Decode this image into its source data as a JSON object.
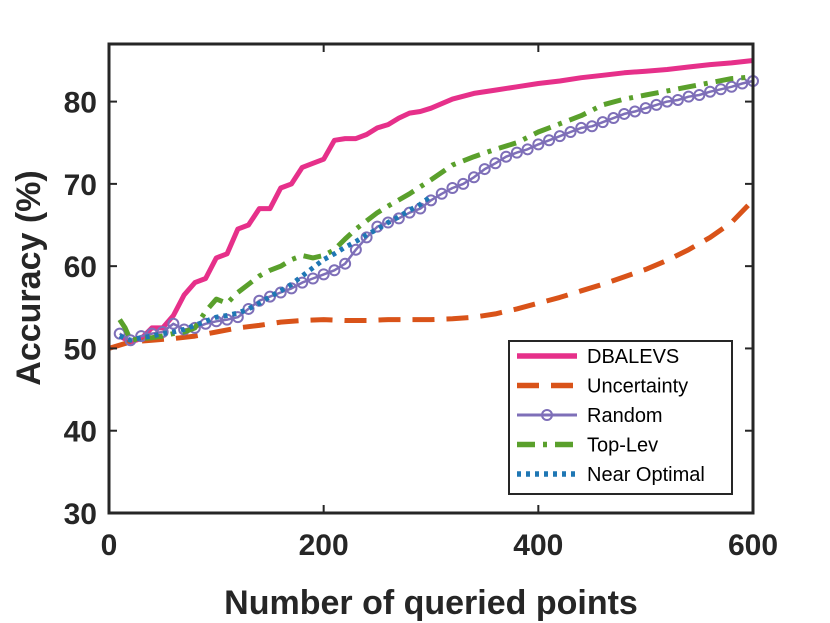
{
  "chart_data": {
    "type": "line",
    "xlabel": "Number of queried points",
    "ylabel": "Accuracy (%)",
    "xlim": [
      0,
      600
    ],
    "ylim": [
      30,
      87
    ],
    "xticks": [
      0,
      200,
      400,
      600
    ],
    "yticks": [
      30,
      40,
      50,
      60,
      70,
      80
    ],
    "grid": false,
    "legend_position": "bottom-right",
    "series": [
      {
        "name": "DBALEVS",
        "color": "#e6308a",
        "style": "solid",
        "x": [
          10,
          20,
          30,
          40,
          50,
          60,
          70,
          80,
          90,
          100,
          110,
          120,
          130,
          140,
          150,
          160,
          170,
          180,
          190,
          200,
          210,
          220,
          230,
          240,
          250,
          260,
          270,
          280,
          290,
          300,
          320,
          340,
          360,
          380,
          400,
          420,
          440,
          460,
          480,
          500,
          520,
          540,
          560,
          580,
          600
        ],
        "y": [
          51.5,
          50.8,
          51.2,
          52.5,
          52.5,
          54.0,
          56.5,
          58.0,
          58.5,
          61.0,
          61.5,
          64.5,
          65.0,
          67.0,
          67.0,
          69.5,
          70.0,
          72.0,
          72.5,
          73.0,
          75.3,
          75.5,
          75.5,
          76.0,
          76.8,
          77.2,
          78.0,
          78.6,
          78.8,
          79.2,
          80.3,
          81.0,
          81.4,
          81.8,
          82.2,
          82.5,
          82.9,
          83.2,
          83.5,
          83.7,
          83.9,
          84.2,
          84.5,
          84.7,
          85.0
        ]
      },
      {
        "name": "Uncertainty",
        "color": "#d95319",
        "style": "dashed",
        "x": [
          0,
          20,
          40,
          60,
          80,
          100,
          120,
          140,
          160,
          180,
          200,
          220,
          240,
          260,
          280,
          300,
          320,
          340,
          360,
          380,
          400,
          420,
          440,
          460,
          480,
          500,
          520,
          540,
          560,
          580,
          600
        ],
        "y": [
          50.0,
          50.8,
          51.0,
          51.2,
          51.5,
          52.0,
          52.5,
          52.8,
          53.2,
          53.4,
          53.5,
          53.4,
          53.4,
          53.5,
          53.5,
          53.5,
          53.6,
          53.8,
          54.2,
          54.8,
          55.5,
          56.2,
          57.0,
          57.8,
          58.7,
          59.6,
          60.7,
          62.0,
          63.5,
          65.3,
          68.0
        ]
      },
      {
        "name": "Random",
        "color": "#7e6fb8",
        "style": "solid-circle",
        "x": [
          10,
          20,
          30,
          40,
          50,
          60,
          70,
          80,
          90,
          100,
          110,
          120,
          130,
          140,
          150,
          160,
          170,
          180,
          190,
          200,
          210,
          220,
          230,
          240,
          250,
          260,
          270,
          280,
          290,
          300,
          310,
          320,
          330,
          340,
          350,
          360,
          370,
          380,
          390,
          400,
          410,
          420,
          430,
          440,
          450,
          460,
          470,
          480,
          490,
          500,
          510,
          520,
          530,
          540,
          550,
          560,
          570,
          580,
          590,
          600
        ],
        "y": [
          51.8,
          51.0,
          51.5,
          51.8,
          52.0,
          53.0,
          52.3,
          52.5,
          53.0,
          53.3,
          53.5,
          53.8,
          54.8,
          55.8,
          56.3,
          56.8,
          57.3,
          58.0,
          58.5,
          59.0,
          59.5,
          60.3,
          62.0,
          63.5,
          64.8,
          65.3,
          65.8,
          66.5,
          67.0,
          68.0,
          68.8,
          69.5,
          70.0,
          70.8,
          71.8,
          72.5,
          73.3,
          73.8,
          74.2,
          74.8,
          75.3,
          75.8,
          76.3,
          76.8,
          77.0,
          77.5,
          78.0,
          78.5,
          78.8,
          79.2,
          79.6,
          80.0,
          80.2,
          80.6,
          80.8,
          81.2,
          81.5,
          81.8,
          82.2,
          82.5
        ]
      },
      {
        "name": "Top-Lev",
        "color": "#5aa02c",
        "style": "dashdot",
        "x": [
          10,
          15,
          20,
          30,
          40,
          50,
          60,
          70,
          80,
          90,
          100,
          110,
          120,
          130,
          140,
          150,
          160,
          170,
          180,
          190,
          200,
          210,
          220,
          230,
          240,
          250,
          260,
          280,
          300,
          320,
          340,
          360,
          380,
          400,
          420,
          440,
          460,
          480,
          500,
          520,
          540,
          560,
          580,
          600
        ],
        "y": [
          53.5,
          52.5,
          51.0,
          51.2,
          51.3,
          51.5,
          51.8,
          52.0,
          52.5,
          54.5,
          56.0,
          55.5,
          56.8,
          57.8,
          58.8,
          59.5,
          60.0,
          60.8,
          61.3,
          61.0,
          61.3,
          62.0,
          63.3,
          64.5,
          65.5,
          66.5,
          67.3,
          68.8,
          70.5,
          72.3,
          73.3,
          74.2,
          75.0,
          76.3,
          77.3,
          78.3,
          79.6,
          80.3,
          80.8,
          81.3,
          81.8,
          82.3,
          82.8,
          83.0
        ]
      },
      {
        "name": "Near Optimal",
        "color": "#1f77b4",
        "style": "dotted",
        "x": [
          10,
          20,
          30,
          40,
          50,
          60,
          70,
          80,
          90,
          100,
          110,
          120,
          130,
          140,
          150,
          160,
          170,
          180,
          190,
          200,
          210,
          220,
          230,
          240,
          250,
          260,
          270,
          280,
          290,
          300
        ],
        "y": [
          51.5,
          51.0,
          51.3,
          51.5,
          51.8,
          52.0,
          52.3,
          52.8,
          53.3,
          53.8,
          54.0,
          54.3,
          54.8,
          55.5,
          56.3,
          57.0,
          57.8,
          58.8,
          59.8,
          60.8,
          61.5,
          62.3,
          63.0,
          63.8,
          64.5,
          65.3,
          66.0,
          66.8,
          67.5,
          68.5
        ]
      }
    ]
  }
}
